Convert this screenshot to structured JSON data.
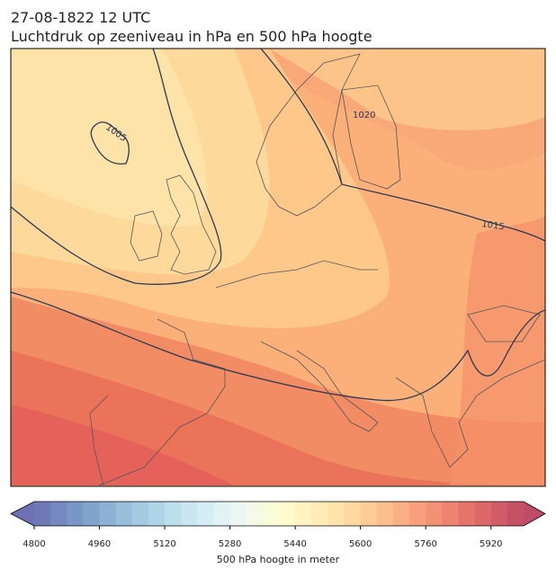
{
  "header": {
    "title": "27-08-1822 12 UTC",
    "subtitle": "Luchtdruk op zeeniveau in hPa en 500 hPa hoogte"
  },
  "map": {
    "isobar_labels": [
      1005,
      1020,
      1015
    ]
  },
  "colorbar": {
    "label": "500 hPa hoogte in meter",
    "lim": [
      4800,
      6000
    ],
    "ticks": [
      4800,
      4960,
      5120,
      5280,
      5440,
      5600,
      5760,
      5920
    ]
  }
}
